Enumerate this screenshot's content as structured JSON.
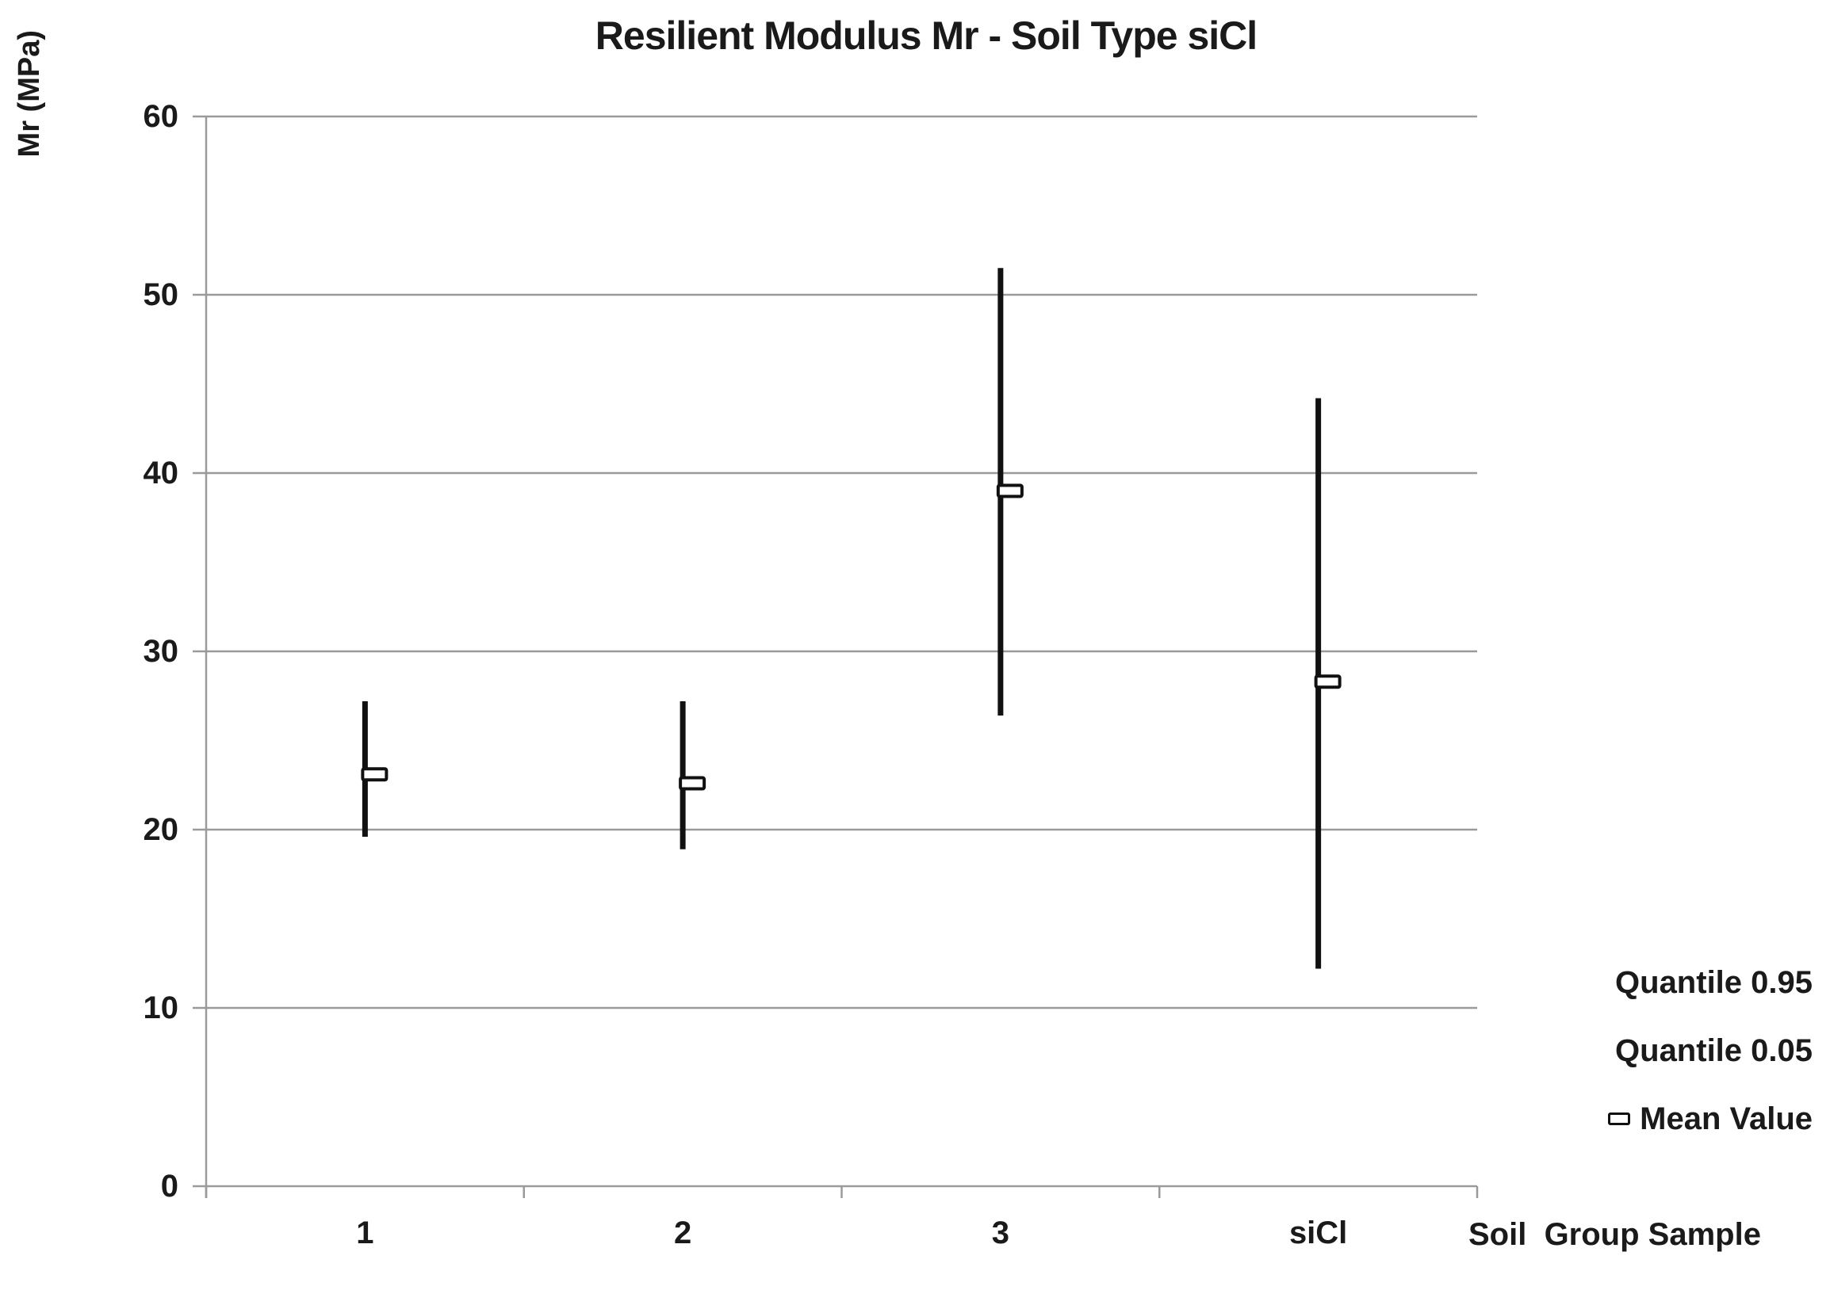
{
  "chart_data": {
    "type": "bar",
    "subtype": "quantile-range-with-mean-markers",
    "title": "Resilient Modulus Mr - Soil Type siCl",
    "ylabel": "Mr (MPa)",
    "xlabel": "Soil  Group Sample",
    "categories": [
      "1",
      "2",
      "3",
      "siCl"
    ],
    "series": [
      {
        "name": "Quantile 0.95",
        "values": [
          27.2,
          27.2,
          51.5,
          44.2
        ]
      },
      {
        "name": "Quantile 0.05",
        "values": [
          19.6,
          18.9,
          26.4,
          12.2
        ]
      },
      {
        "name": "Mean Value",
        "values": [
          23.1,
          22.6,
          39.0,
          28.3
        ]
      }
    ],
    "ylim": [
      0,
      60
    ],
    "yticks": [
      0,
      10,
      20,
      30,
      40,
      50,
      60
    ],
    "grid": true,
    "legend_position": "bottom-right",
    "colors": {
      "bar": "#111111",
      "grid": "#9a9a9a",
      "text": "#1a1a1a",
      "marker_fill": "#ffffff"
    }
  }
}
